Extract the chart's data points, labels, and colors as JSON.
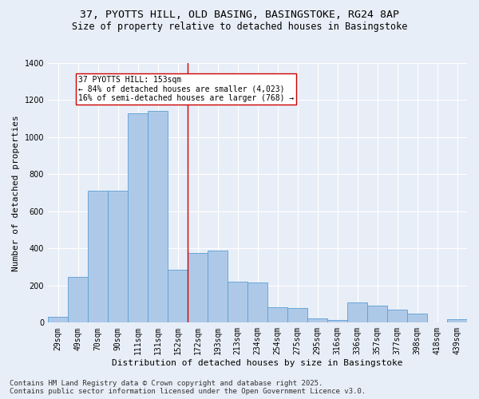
{
  "title_line1": "37, PYOTTS HILL, OLD BASING, BASINGSTOKE, RG24 8AP",
  "title_line2": "Size of property relative to detached houses in Basingstoke",
  "xlabel": "Distribution of detached houses by size in Basingstoke",
  "ylabel": "Number of detached properties",
  "categories": [
    "29sqm",
    "49sqm",
    "70sqm",
    "90sqm",
    "111sqm",
    "131sqm",
    "152sqm",
    "172sqm",
    "193sqm",
    "213sqm",
    "234sqm",
    "254sqm",
    "275sqm",
    "295sqm",
    "316sqm",
    "336sqm",
    "357sqm",
    "377sqm",
    "398sqm",
    "418sqm",
    "439sqm"
  ],
  "values": [
    30,
    245,
    710,
    710,
    1130,
    1140,
    285,
    375,
    390,
    220,
    215,
    85,
    80,
    25,
    15,
    110,
    90,
    70,
    50,
    0,
    20
  ],
  "bar_color": "#aec9e8",
  "bar_edge_color": "#5a9fd4",
  "vline_color": "#cc0000",
  "vline_x_index": 6,
  "annotation_text": "37 PYOTTS HILL: 153sqm\n← 84% of detached houses are smaller (4,023)\n16% of semi-detached houses are larger (768) →",
  "annotation_box_color": "#ffffff",
  "annotation_box_edge": "#cc0000",
  "ylim": [
    0,
    1400
  ],
  "yticks": [
    0,
    200,
    400,
    600,
    800,
    1000,
    1200,
    1400
  ],
  "bg_color": "#e8eef7",
  "grid_color": "#ffffff",
  "footer_line1": "Contains HM Land Registry data © Crown copyright and database right 2025.",
  "footer_line2": "Contains public sector information licensed under the Open Government Licence v3.0.",
  "title_fontsize": 9.5,
  "subtitle_fontsize": 8.5,
  "axis_label_fontsize": 8,
  "tick_fontsize": 7,
  "annotation_fontsize": 7,
  "footer_fontsize": 6.5
}
